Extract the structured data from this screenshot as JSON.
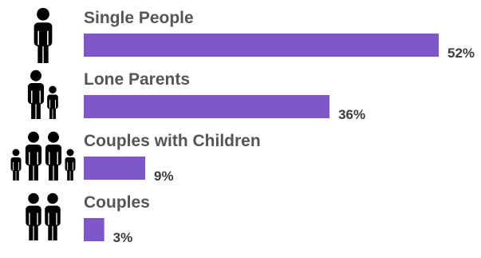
{
  "chart_data": {
    "type": "bar",
    "orientation": "horizontal",
    "categories": [
      "Single People",
      "Lone Parents",
      "Couples with Children",
      "Couples"
    ],
    "values": [
      52,
      36,
      9,
      3
    ],
    "value_labels": [
      "52%",
      "36%",
      "9%",
      "3%"
    ],
    "unit": "%",
    "xlim": [
      0,
      52
    ],
    "title": "",
    "xlabel": "",
    "ylabel": "",
    "grid": false,
    "legend": "none",
    "bar_color": "#7e57c8",
    "category_icons": [
      "single-person-icon",
      "lone-parent-icon",
      "family-with-children-icon",
      "couple-icon"
    ]
  }
}
